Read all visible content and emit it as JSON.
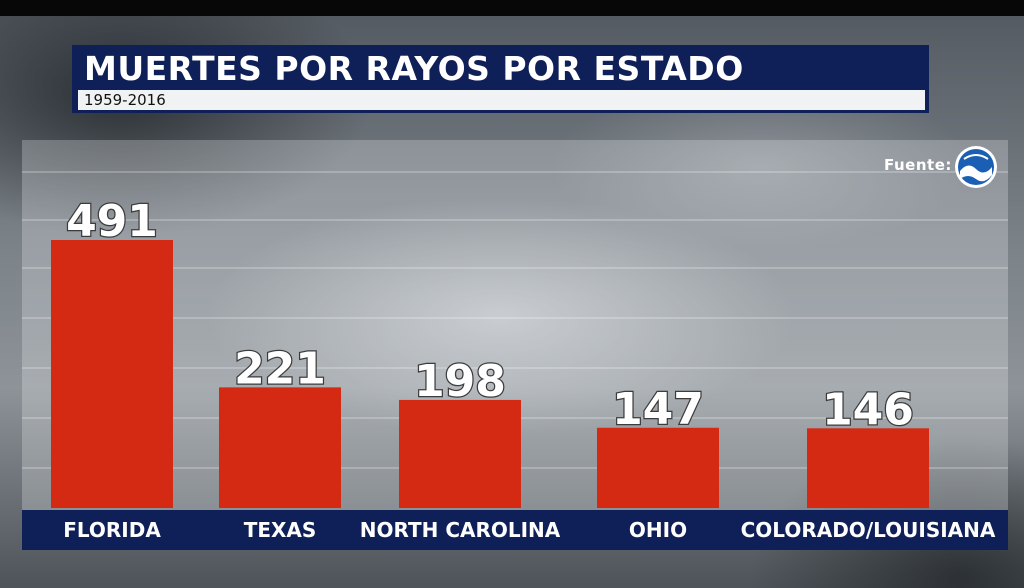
{
  "header": {
    "title": "MUERTES POR RAYOS POR ESTADO",
    "subtitle": "1959-2016"
  },
  "source": {
    "label": "Fuente:",
    "logo_icon": "noaa-logo-icon"
  },
  "colors": {
    "bar": "#d42a14",
    "navy": "#0f1f57",
    "label": "#ffffff"
  },
  "chart_data": {
    "type": "bar",
    "title": "MUERTES POR RAYOS POR ESTADO",
    "subtitle": "1959-2016",
    "categories": [
      "FLORIDA",
      "TEXAS",
      "NORTH CAROLINA",
      "OHIO",
      "COLORADO/LOUISIANA"
    ],
    "values": [
      491,
      221,
      198,
      147,
      146
    ],
    "data_labels": [
      "491",
      "221",
      "198",
      "147",
      "146"
    ],
    "xlabel": "",
    "ylabel": "",
    "grid": true,
    "legend": "none"
  }
}
